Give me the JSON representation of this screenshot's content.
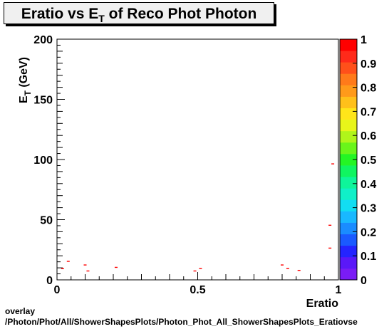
{
  "title": {
    "prefix": "Eratio vs E",
    "sub": "T",
    "suffix": " of Reco Phot Photon"
  },
  "footer": {
    "line1": "overlay",
    "line2": "/Photon/Phot/All/ShowerShapesPlots/Photon_Phot_All_ShowerShapesPlots_Eratiovse"
  },
  "chart_data": {
    "type": "scatter",
    "title": "Eratio vs E_T of Reco Phot Photon",
    "xlabel": "Eratio",
    "ylabel": "E_T (GeV)",
    "xlim": [
      0,
      1
    ],
    "ylim": [
      0,
      200
    ],
    "x_ticks": [
      "0",
      "0.5",
      "1"
    ],
    "y_ticks": [
      "0",
      "50",
      "100",
      "150",
      "200"
    ],
    "colorbar": {
      "range": [
        0,
        1
      ],
      "ticks": [
        "0",
        "0.1",
        "0.2",
        "0.3",
        "0.4",
        "0.5",
        "0.6",
        "0.7",
        "0.8",
        "0.9",
        "1"
      ],
      "colors": [
        "#7a1cf5",
        "#5a18f8",
        "#2424ff",
        "#1a5aff",
        "#1a8cff",
        "#19b8ff",
        "#12ddf2",
        "#10f0c8",
        "#0ef59a",
        "#10f560",
        "#24f524",
        "#6af51a",
        "#b0f51a",
        "#e8f51a",
        "#ffe51a",
        "#ffc01a",
        "#ff9a1a",
        "#ff7a1a",
        "#ff501a",
        "#ff2a1a",
        "#ff0000"
      ]
    },
    "marker_color": "#ff0000",
    "points": [
      {
        "x": 0.02,
        "y": 9.5
      },
      {
        "x": 0.04,
        "y": 15.5
      },
      {
        "x": 0.1,
        "y": 12.5
      },
      {
        "x": 0.11,
        "y": 7.5
      },
      {
        "x": 0.21,
        "y": 10.5
      },
      {
        "x": 0.49,
        "y": 7.5
      },
      {
        "x": 0.51,
        "y": 9.5
      },
      {
        "x": 0.8,
        "y": 12.5
      },
      {
        "x": 0.82,
        "y": 9.5
      },
      {
        "x": 0.86,
        "y": 8.0
      },
      {
        "x": 0.97,
        "y": 45.5
      },
      {
        "x": 0.97,
        "y": 26.5
      },
      {
        "x": 0.98,
        "y": 96.5
      }
    ]
  }
}
